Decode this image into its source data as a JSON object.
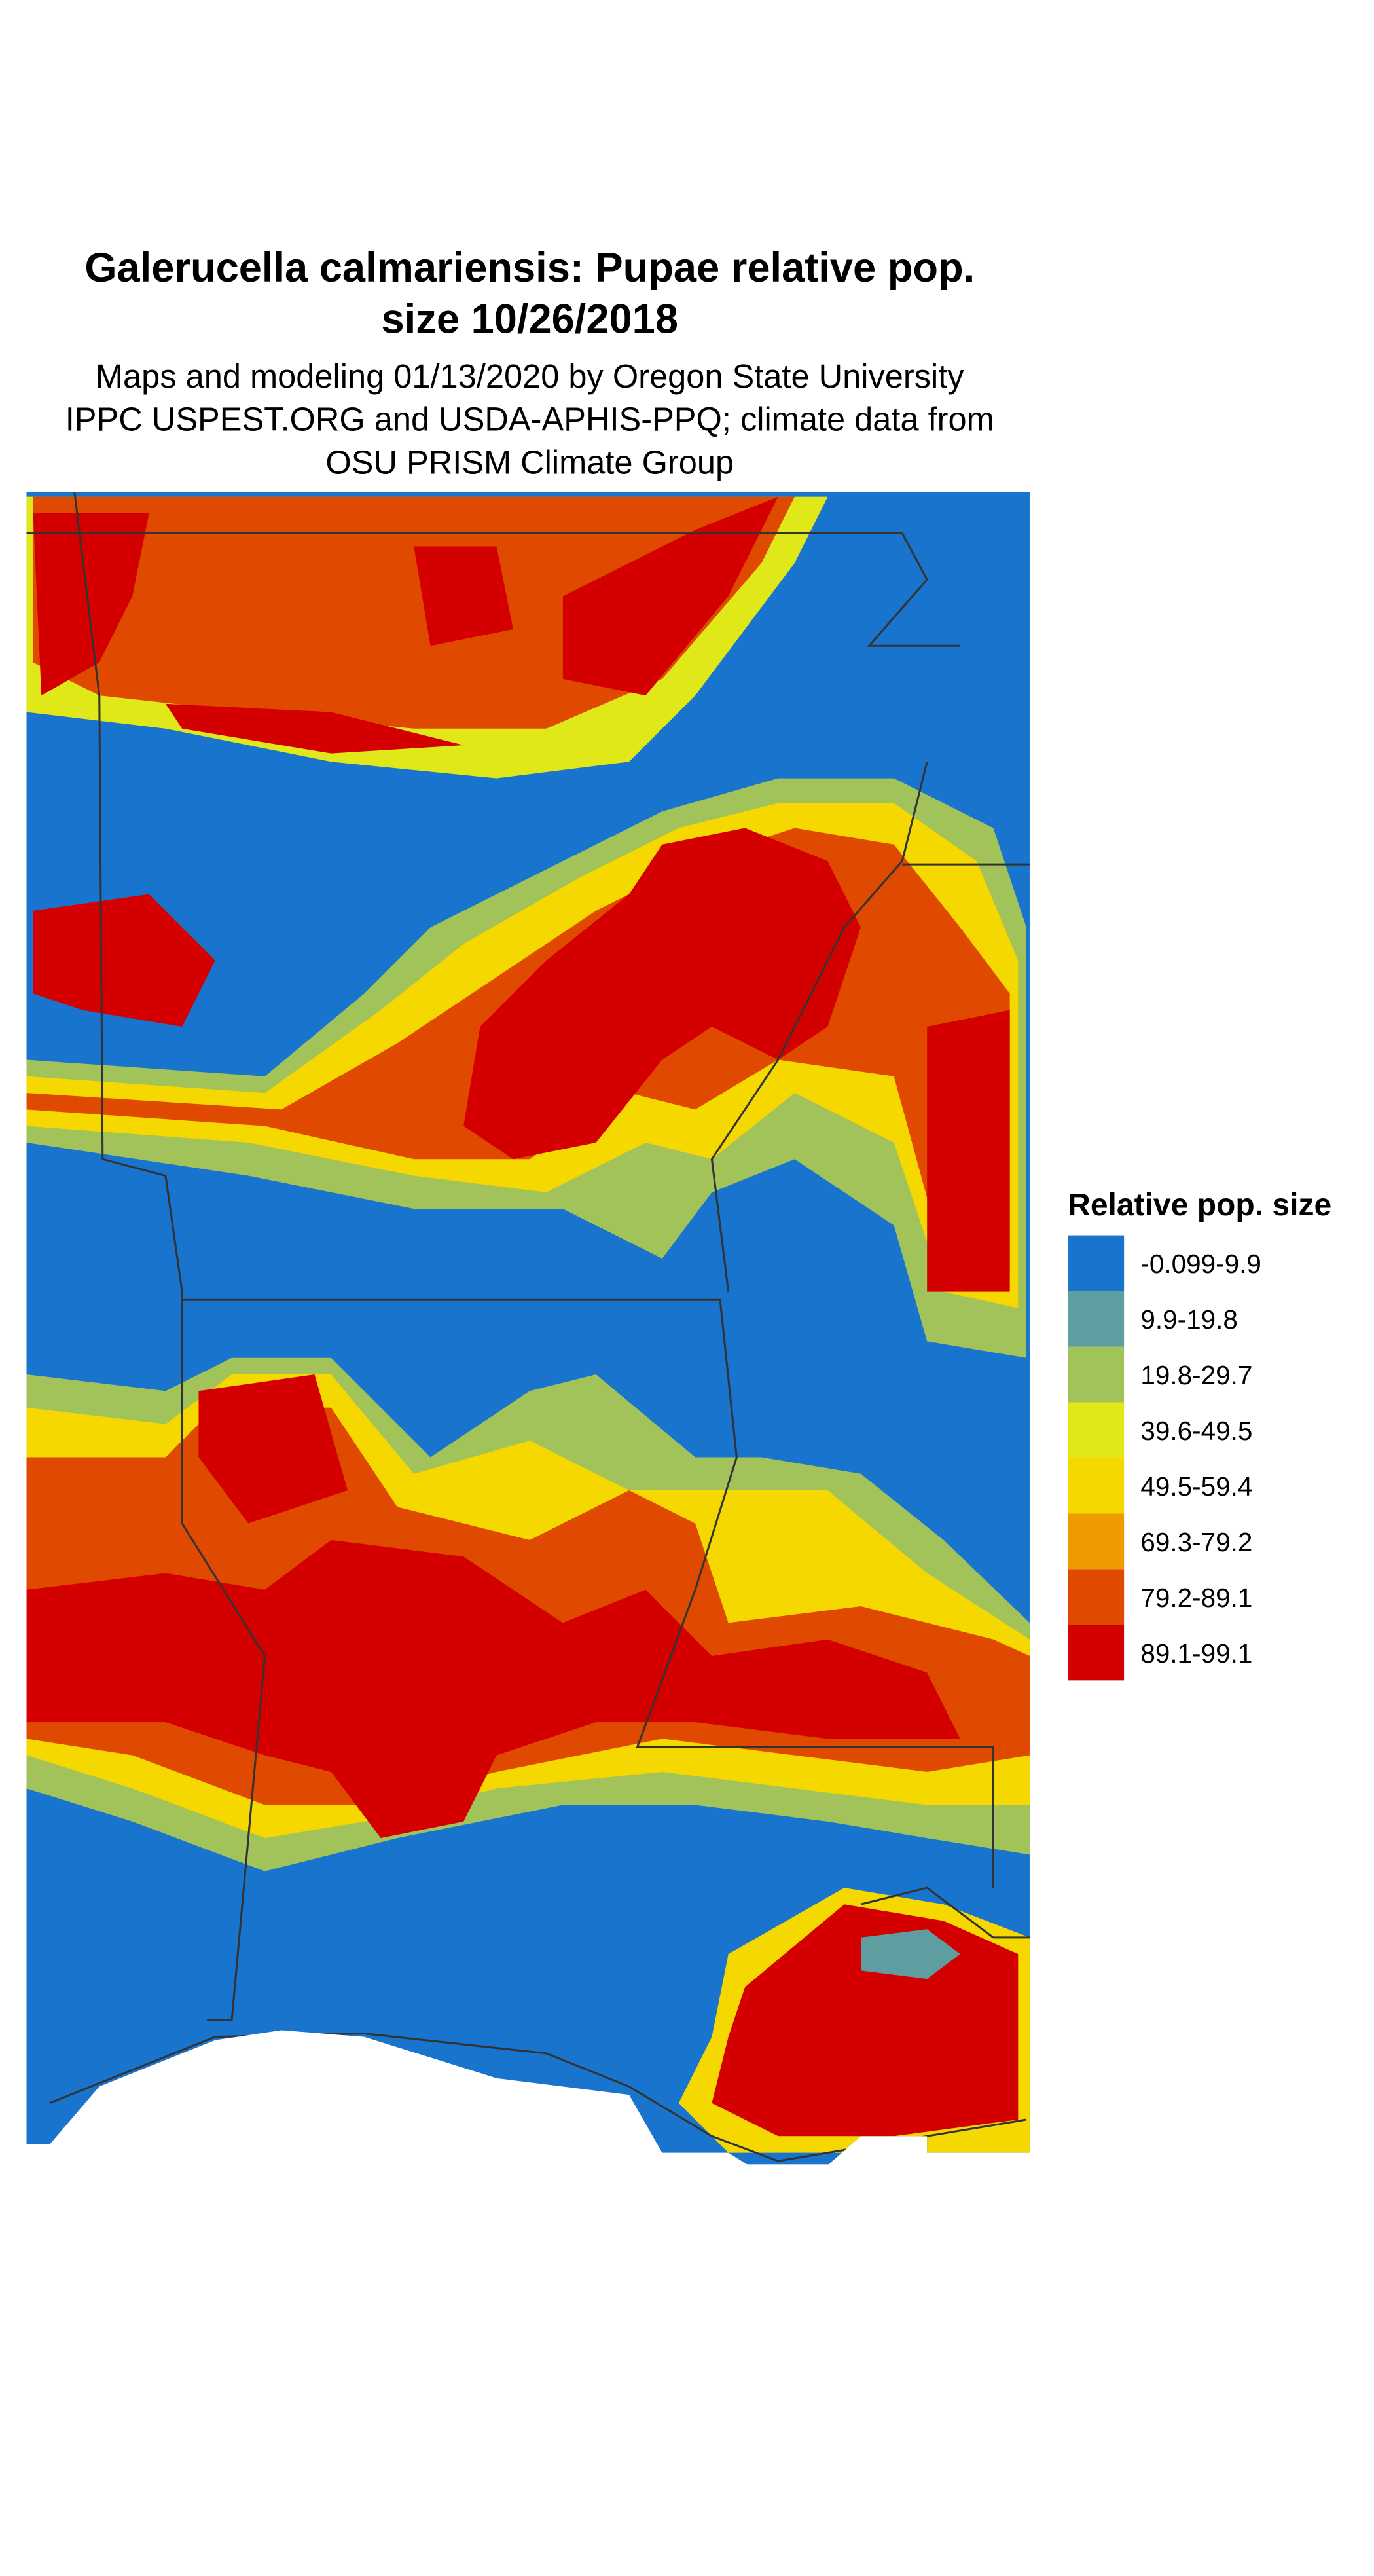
{
  "map": {
    "title_lines": [
      "Galerucella calmariensis: Pupae relative pop.",
      "size 10/26/2018"
    ],
    "subtitle_lines": [
      "Maps and modeling 01/13/2020 by Oregon State University",
      "IPPC USPEST.ORG and USDA-APHIS-PPQ; climate data from",
      "OSU PRISM Climate Group"
    ],
    "legend": {
      "title": "Relative pop. size",
      "items": [
        {
          "label": "-0.099-9.9",
          "color": "#1874cd"
        },
        {
          "label": "9.9-19.8",
          "color": "#5f9ea0"
        },
        {
          "label": "19.8-29.7",
          "color": "#a2c25a"
        },
        {
          "label": "39.6-49.5",
          "color": "#e0e81a"
        },
        {
          "label": "49.5-59.4",
          "color": "#f5d800"
        },
        {
          "label": "69.3-79.2",
          "color": "#ee9a00"
        },
        {
          "label": "79.2-89.1",
          "color": "#e04a00"
        },
        {
          "label": "89.1-99.1",
          "color": "#d40000"
        }
      ]
    }
  }
}
